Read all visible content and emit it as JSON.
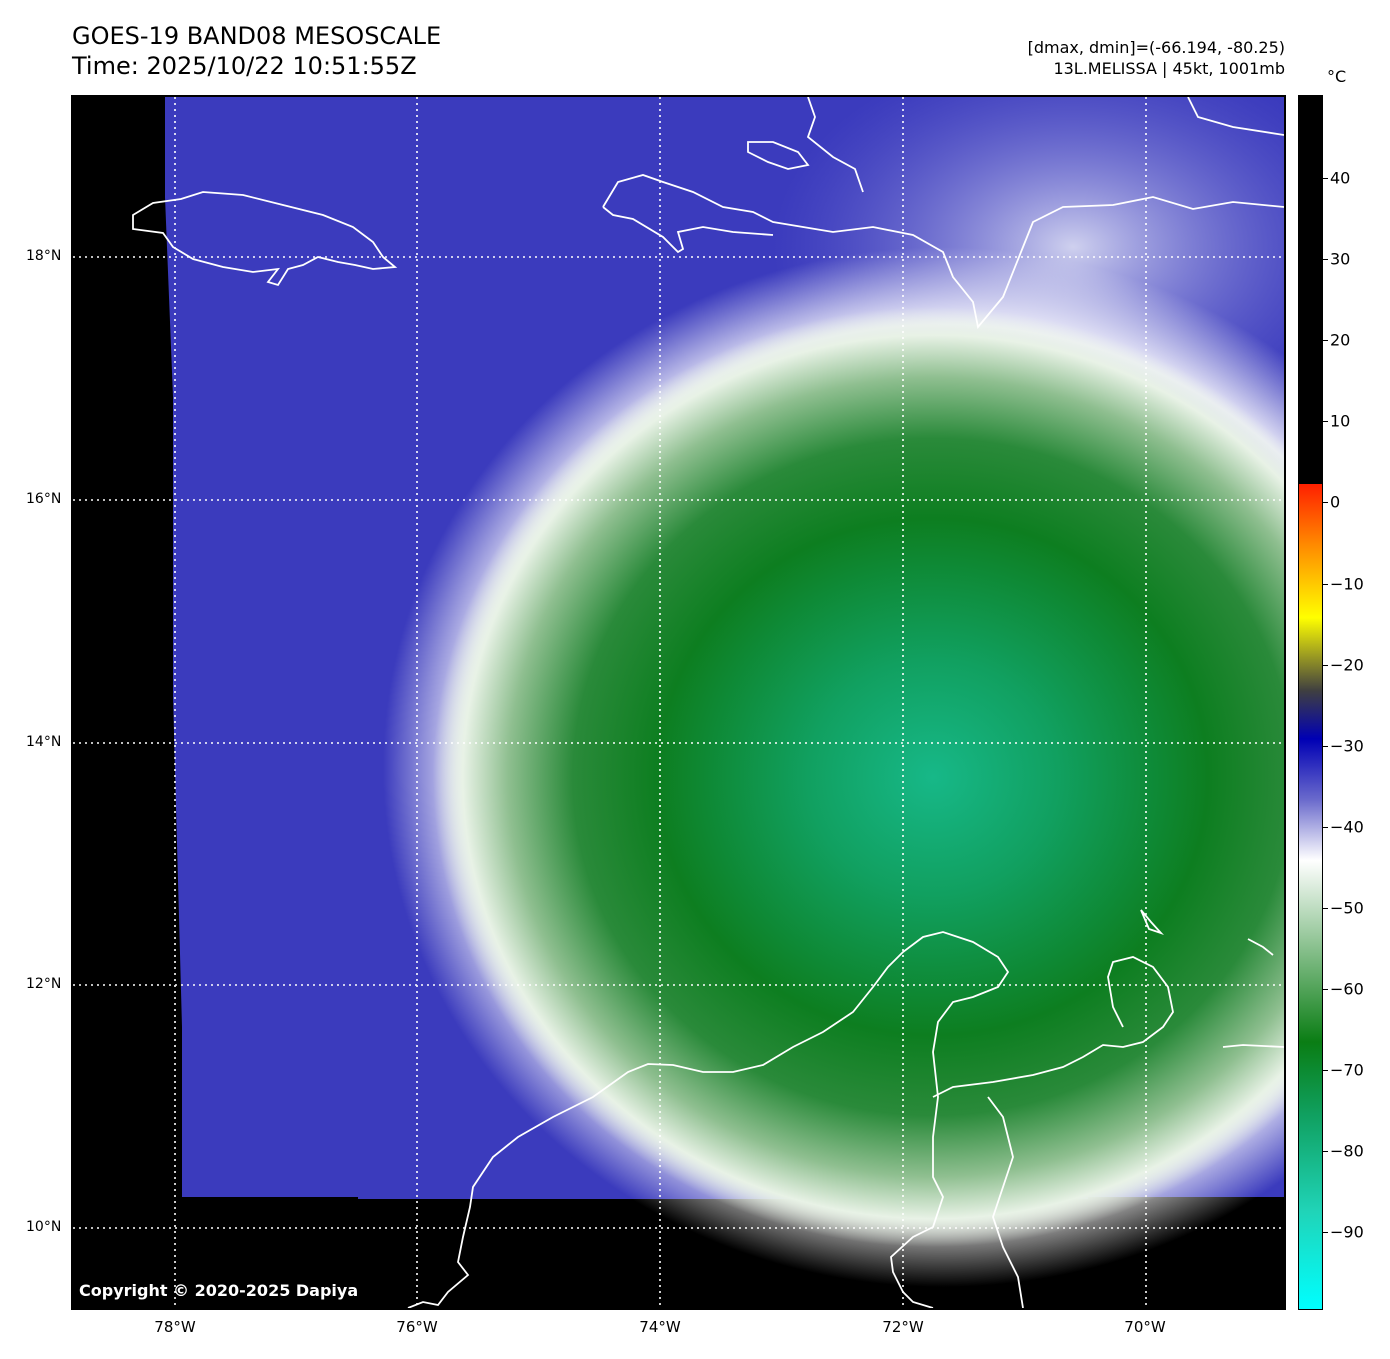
{
  "header": {
    "title_line1": "GOES-19 BAND08 MESOSCALE",
    "title_line2": "Time: 2025/10/22 10:51:55Z",
    "stats": "[dmax, dmin]=(-66.194, -80.25)",
    "storm": "13L.MELISSA | 45kt, 1001mb"
  },
  "map": {
    "copyright": "Copyright © 2020-2025 Dapiya",
    "lat_labels": [
      "18°N",
      "16°N",
      "14°N",
      "12°N",
      "10°N"
    ],
    "lon_labels": [
      "78°W",
      "76°W",
      "74°W",
      "72°W",
      "70°W"
    ],
    "colors": {
      "clear_air": "#3b3bbd",
      "cloud_edge": "#ffffff",
      "cold_top": "#0a7d14",
      "coldest_top": "#17b888",
      "coast": "#ffffff",
      "no_data": "#000000"
    }
  },
  "colorbar": {
    "unit": "°C",
    "ticks": [
      "40",
      "30",
      "20",
      "10",
      "0",
      "−10",
      "−20",
      "−30",
      "−40",
      "−50",
      "−60",
      "−70",
      "−80",
      "−90"
    ]
  }
}
